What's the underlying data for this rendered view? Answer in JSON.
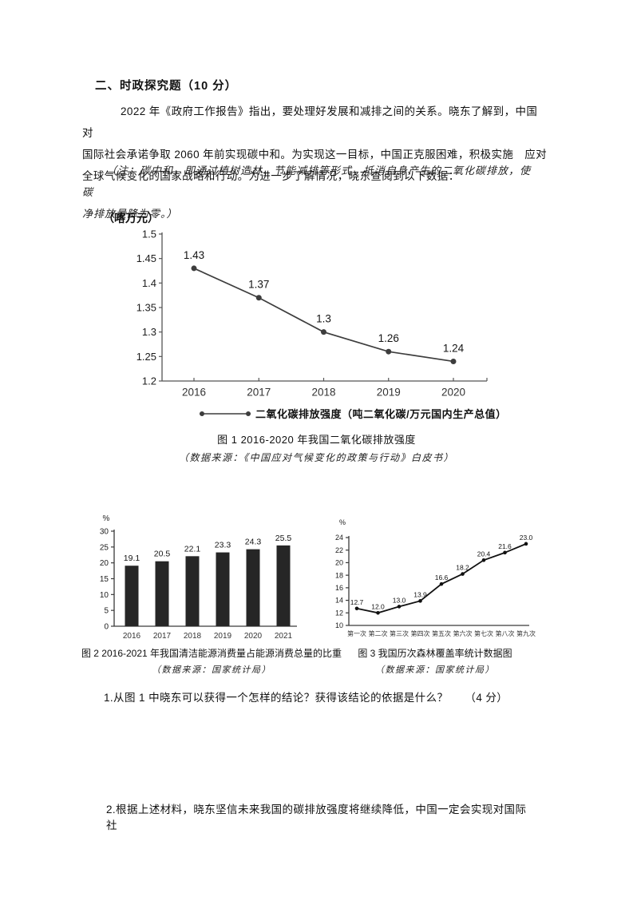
{
  "doc": {
    "heading": "二、时政探究题（10 分）",
    "intro_lines": [
      "2022 年《政府工作报告》指出，要处理好发展和减排之间的关系。晓东了解到，中国　　对",
      "国际社会承诺争取 2060 年前实现碳中和。为实现这一目标，中国正克服困难，积极实施　应对",
      "全球气候变化的国家战略和行动。为进一步了解情况，晓东查阅到以下数据："
    ],
    "note_lines": [
      "（注：碳中和，即通过植树造林、节能减排等形式，抵消自身产生的二氧化碳排放，使　　碳",
      "净排放量降为零。）"
    ],
    "questions": [
      "1.从图 1 中晓东可以获得一个怎样的结论？获得该结论的依据是什么？　　（4 分）",
      "2.根据上述材料，晓东坚信未来我国的碳排放强度将继续降低，中国一定会实现对国际　　社"
    ]
  },
  "figure1": {
    "unit_label": "（喀万元）",
    "legend_label": "二氧化碳排放强度（吨二氧化碳/万元国内生产总值）",
    "caption": "图 1 2016-2020 年我国二氧化碳排放强度",
    "source": "（数据来源：《中国应对气候变化的政策与行动》白皮书）"
  },
  "figure2": {
    "caption": "图 2 2016-2021 年我国清洁能源消费量占能源消费总量的比重",
    "source": "（数据来源：国家统计局）"
  },
  "figure3": {
    "caption": "图 3 我国历次森林覆盖率统计数据图",
    "source": "（数据来源：国家统计局）"
  },
  "chart_data": [
    {
      "id": "chart1",
      "type": "line",
      "title": "图 1 2016-2020 年我国二氧化碳排放强度",
      "categories": [
        "2016",
        "2017",
        "2018",
        "2019",
        "2020"
      ],
      "values": [
        1.43,
        1.37,
        1.3,
        1.26,
        1.24
      ],
      "ylim": [
        1.2,
        1.5
      ],
      "ystep": 0.05,
      "ylabel": "（喀万元）",
      "legend": "二氧化碳排放强度（吨二氧化碳/万元国内生产总值）",
      "grid": false,
      "legend_position": "bottom"
    },
    {
      "id": "chart2",
      "type": "bar",
      "title": "图 2 2016-2021 年我国清洁能源消费量占能源消费总量的比重",
      "categories": [
        "2016",
        "2017",
        "2018",
        "2019",
        "2020",
        "2021"
      ],
      "values": [
        19.1,
        20.5,
        22.1,
        23.3,
        24.3,
        25.5
      ],
      "ylim": [
        0,
        30
      ],
      "ystep": 5,
      "ylabel": "%",
      "label_decimals": 1,
      "ytick_decimals": 0,
      "grid": false
    },
    {
      "id": "chart3",
      "type": "line",
      "title": "图 3 我国历次森林覆盖率统计数据图",
      "categories": [
        "第一次",
        "第二次",
        "第三次",
        "第四次",
        "第五次",
        "第六次",
        "第七次",
        "第八次",
        "第九次"
      ],
      "values": [
        12.7,
        12.0,
        13.0,
        13.9,
        16.6,
        18.2,
        20.4,
        21.6,
        23.0
      ],
      "ylim": [
        10,
        24
      ],
      "ystep": 2,
      "ylabel": "%",
      "label_decimals": 1,
      "ytick_decimals": 0,
      "grid": false
    }
  ]
}
